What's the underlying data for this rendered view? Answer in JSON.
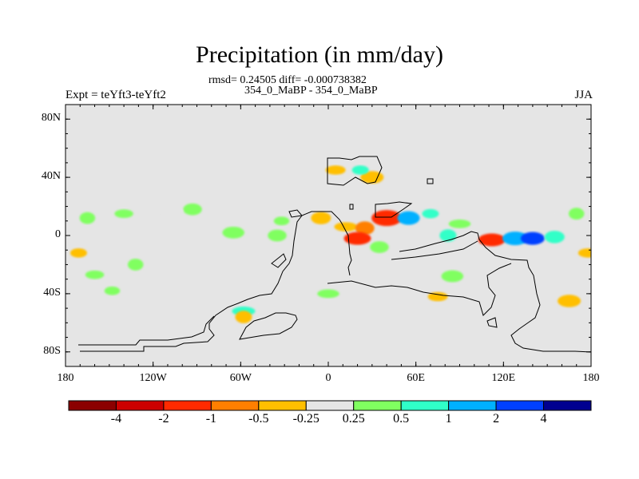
{
  "chart_data": {
    "type": "heatmap",
    "title": "Precipitation (in mm/day)",
    "stats_line": "rmsd= 0.24505 diff= -0.000738382",
    "case_line": "354_0_MaBP - 354_0_MaBP",
    "left_label": "Expt = teYft3-teYft2",
    "right_label": "JJA",
    "xlim": [
      -180,
      180
    ],
    "ylim": [
      -90,
      90
    ],
    "x_ticks": [
      {
        "value": -180,
        "label": "180"
      },
      {
        "value": -120,
        "label": "120W"
      },
      {
        "value": -60,
        "label": "60W"
      },
      {
        "value": 0,
        "label": "0"
      },
      {
        "value": 60,
        "label": "60E"
      },
      {
        "value": 120,
        "label": "120E"
      },
      {
        "value": 180,
        "label": "180"
      }
    ],
    "y_ticks": [
      {
        "value": 80,
        "label": "80N"
      },
      {
        "value": 40,
        "label": "40N"
      },
      {
        "value": 0,
        "label": "0"
      },
      {
        "value": -40,
        "label": "40S"
      },
      {
        "value": -80,
        "label": "80S"
      }
    ],
    "colorbar": {
      "levels": [
        "-4",
        "-2",
        "-1",
        "-0.5",
        "-0.25",
        "0.25",
        "0.5",
        "1",
        "2",
        "4"
      ],
      "colors": [
        "#8b0000",
        "#cc0000",
        "#ff2a00",
        "#ff7f00",
        "#ffbf00",
        "#e5e5e5",
        "#80ff60",
        "#30ffc8",
        "#00b0ff",
        "#0040ff",
        "#000090"
      ]
    },
    "background_color": "#e5e5e5",
    "anomaly_regions": [
      {
        "lon": -171,
        "lat": -12,
        "value": -0.5
      },
      {
        "lon": -150,
        "lat": -15,
        "value": -0.25
      },
      {
        "lon": -115,
        "lat": -17,
        "value": -0.25
      },
      {
        "lon": -132,
        "lat": -20,
        "value": 0.25
      },
      {
        "lon": -160,
        "lat": -27,
        "value": 0.25
      },
      {
        "lon": -163,
        "lat": -48,
        "value": -0.25
      },
      {
        "lon": -148,
        "lat": -38,
        "value": 0.25
      },
      {
        "lon": -93,
        "lat": 18,
        "value": 0.25
      },
      {
        "lon": -107,
        "lat": 17,
        "value": -0.25
      },
      {
        "lon": -165,
        "lat": 12,
        "value": 0.25
      },
      {
        "lon": -140,
        "lat": 15,
        "value": 0.25
      },
      {
        "lon": -65,
        "lat": 2,
        "value": 0.25
      },
      {
        "lon": -32,
        "lat": 10,
        "value": 0.25
      },
      {
        "lon": -35,
        "lat": 0,
        "value": 0.25
      },
      {
        "lon": -58,
        "lat": -52,
        "value": 0.5
      },
      {
        "lon": -58,
        "lat": -56,
        "value": -0.5
      },
      {
        "lon": 5,
        "lat": 45,
        "value": -0.5
      },
      {
        "lon": 30,
        "lat": 40,
        "value": -0.5
      },
      {
        "lon": 22,
        "lat": 45,
        "value": 0.5
      },
      {
        "lon": -5,
        "lat": 12,
        "value": -0.5
      },
      {
        "lon": 12,
        "lat": 6,
        "value": -0.5
      },
      {
        "lon": 25,
        "lat": 5,
        "value": -1
      },
      {
        "lon": 20,
        "lat": -2,
        "value": -2
      },
      {
        "lon": 40,
        "lat": 12,
        "value": -2
      },
      {
        "lon": 70,
        "lat": 15,
        "value": 0.5
      },
      {
        "lon": 55,
        "lat": 12,
        "value": 1
      },
      {
        "lon": 90,
        "lat": 8,
        "value": 0.25
      },
      {
        "lon": 82,
        "lat": 0,
        "value": 0.5
      },
      {
        "lon": 112,
        "lat": -3,
        "value": -2
      },
      {
        "lon": 128,
        "lat": -2,
        "value": 1
      },
      {
        "lon": 140,
        "lat": -2,
        "value": 2
      },
      {
        "lon": 155,
        "lat": -1,
        "value": 0.5
      },
      {
        "lon": 150,
        "lat": 15,
        "value": -0.25
      },
      {
        "lon": 170,
        "lat": 15,
        "value": 0.25
      },
      {
        "lon": 178,
        "lat": -12,
        "value": -0.5
      },
      {
        "lon": 165,
        "lat": -45,
        "value": -0.5
      },
      {
        "lon": 175,
        "lat": -52,
        "value": -0.25
      },
      {
        "lon": 35,
        "lat": -8,
        "value": 0.25
      },
      {
        "lon": 0,
        "lat": -40,
        "value": 0.25
      },
      {
        "lon": -45,
        "lat": -32,
        "value": -0.25
      },
      {
        "lon": 75,
        "lat": -42,
        "value": -0.5
      },
      {
        "lon": 85,
        "lat": -28,
        "value": 0.25
      }
    ]
  }
}
